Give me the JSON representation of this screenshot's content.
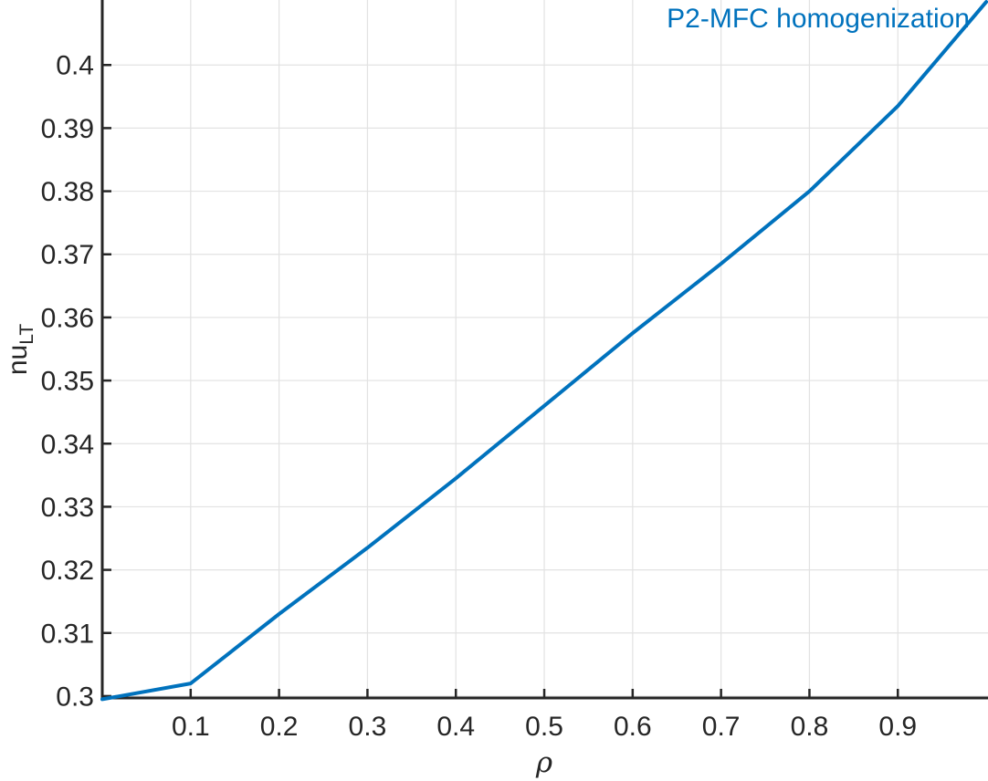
{
  "chart_data": {
    "type": "line",
    "title": "",
    "xlabel": "ρ",
    "ylabel": "nu_LT",
    "ylabel_main": "nu",
    "ylabel_sub": "LT",
    "legend": {
      "label": "P2-MFC homogenization",
      "position": "top-right"
    },
    "x": [
      0,
      0.1,
      0.2,
      0.3,
      0.4,
      0.5,
      0.6,
      0.7,
      0.8,
      0.9,
      1.0
    ],
    "series": [
      {
        "name": "P2-MFC homogenization",
        "values": [
          0.2995,
          0.302,
          0.313,
          0.3235,
          0.3345,
          0.346,
          0.3575,
          0.3685,
          0.38,
          0.3935,
          0.41
        ]
      }
    ],
    "xlim": [
      0,
      1.002
    ],
    "ylim": [
      0.2997,
      0.4103
    ],
    "xticks": {
      "values": [
        0.1,
        0.2,
        0.3,
        0.4,
        0.5,
        0.6,
        0.7,
        0.8,
        0.9
      ],
      "labels": [
        "0.1",
        "0.2",
        "0.3",
        "0.4",
        "0.5",
        "0.6",
        "0.7",
        "0.8",
        "0.9"
      ]
    },
    "yticks": {
      "values": [
        0.3,
        0.31,
        0.32,
        0.33,
        0.34,
        0.35,
        0.36,
        0.37,
        0.38,
        0.39,
        0.4
      ],
      "labels": [
        "0.3",
        "0.31",
        "0.32",
        "0.33",
        "0.34",
        "0.35",
        "0.36",
        "0.37",
        "0.38",
        "0.39",
        "0.4"
      ]
    },
    "grid": true,
    "colors": {
      "line": "#0072BD",
      "legend_text": "#0072BD",
      "grid": "#e2e2e2",
      "axis": "#262626",
      "tick_label": "#262626",
      "background": "#ffffff"
    }
  }
}
